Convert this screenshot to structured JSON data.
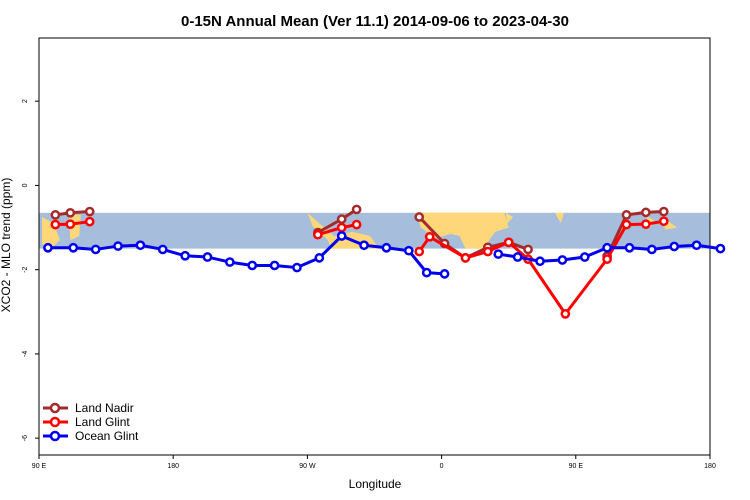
{
  "chart_data": {
    "type": "line",
    "title": "0-15N Annual Mean (Ver 11.1)   2014-09-06 to 2023-04-30",
    "xlabel": "Longitude",
    "ylabel": "XCO2 - MLO trend (ppm)",
    "x_ticks": [
      {
        "x": 90,
        "label": "90 E"
      },
      {
        "x": 180,
        "label": "180"
      },
      {
        "x": 270,
        "label": "90 W"
      },
      {
        "x": 360,
        "label": "0"
      },
      {
        "x": 450,
        "label": "90 E"
      },
      {
        "x": 540,
        "label": "180"
      }
    ],
    "y_ticks": [
      {
        "y": 2,
        "label": "2"
      },
      {
        "y": 0,
        "label": "0"
      },
      {
        "y": -2,
        "label": "-2"
      },
      {
        "y": -4,
        "label": "-4"
      },
      {
        "y": -6,
        "label": "-6"
      }
    ],
    "xlim": [
      90,
      540
    ],
    "ylim": [
      -6.4,
      3.5
    ],
    "grid": false,
    "legend_position": "bottom-left",
    "map_band": {
      "ymin": -1.5,
      "ymax": -0.65,
      "ocean_color": "#a6bddb",
      "land_color": "#fdd77a"
    },
    "series": [
      {
        "name": "Land Nadir",
        "color": "#a52a2a",
        "segments": [
          [
            [
              101,
              -0.7
            ],
            [
              111,
              -0.65
            ],
            [
              124,
              -0.62
            ]
          ],
          [
            [
              277,
              -1.12
            ],
            [
              293,
              -0.8
            ],
            [
              303,
              -0.57
            ]
          ],
          [
            [
              345,
              -0.75
            ],
            [
              362,
              -1.38
            ],
            [
              376,
              -1.72
            ],
            [
              391,
              -1.47
            ],
            [
              405,
              -1.35
            ],
            [
              418,
              -1.52
            ]
          ],
          [
            [
              471,
              -1.68
            ],
            [
              484,
              -0.7
            ],
            [
              497,
              -0.64
            ],
            [
              509,
              -0.62
            ]
          ]
        ]
      },
      {
        "name": "Land Glint",
        "color": "#ff0000",
        "segments": [
          [
            [
              101,
              -0.93
            ],
            [
              111,
              -0.92
            ],
            [
              124,
              -0.86
            ]
          ],
          [
            [
              277,
              -1.17
            ],
            [
              293,
              -1.0
            ],
            [
              303,
              -0.93
            ]
          ],
          [
            [
              345,
              -1.57
            ],
            [
              352,
              -1.22
            ],
            [
              376,
              -1.72
            ],
            [
              391,
              -1.57
            ],
            [
              405,
              -1.35
            ],
            [
              418,
              -1.75
            ],
            [
              443,
              -3.05
            ],
            [
              471,
              -1.75
            ],
            [
              484,
              -0.93
            ],
            [
              497,
              -0.92
            ],
            [
              509,
              -0.85
            ]
          ]
        ]
      },
      {
        "name": "Ocean Glint",
        "color": "#0000ee",
        "segments": [
          [
            [
              96,
              -1.48
            ],
            [
              113,
              -1.48
            ],
            [
              128,
              -1.52
            ],
            [
              143,
              -1.44
            ],
            [
              158,
              -1.42
            ],
            [
              173,
              -1.52
            ],
            [
              188,
              -1.67
            ],
            [
              203,
              -1.7
            ],
            [
              218,
              -1.82
            ],
            [
              233,
              -1.9
            ],
            [
              248,
              -1.9
            ],
            [
              263,
              -1.95
            ],
            [
              278,
              -1.72
            ],
            [
              293,
              -1.2
            ],
            [
              308,
              -1.42
            ],
            [
              323,
              -1.48
            ],
            [
              338,
              -1.55
            ],
            [
              350,
              -2.07
            ],
            [
              362,
              -2.1
            ]
          ],
          [
            [
              398,
              -1.63
            ],
            [
              411,
              -1.7
            ],
            [
              426,
              -1.8
            ],
            [
              441,
              -1.77
            ],
            [
              456,
              -1.7
            ],
            [
              471,
              -1.48
            ],
            [
              486,
              -1.48
            ],
            [
              501,
              -1.52
            ],
            [
              516,
              -1.45
            ],
            [
              531,
              -1.42
            ],
            [
              547,
              -1.5
            ]
          ]
        ]
      }
    ]
  }
}
